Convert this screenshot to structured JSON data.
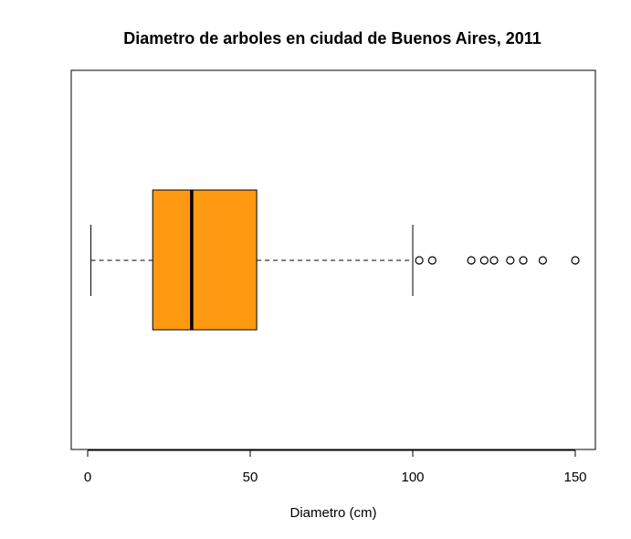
{
  "chart_data": {
    "type": "boxplot",
    "orientation": "horizontal",
    "title": "Diametro de arboles en ciudad de Buenos Aires, 2011",
    "xlabel": "Diametro (cm)",
    "ylabel": "",
    "xlim": [
      0,
      150
    ],
    "xticks": [
      0,
      50,
      100,
      150
    ],
    "xtick_labels": [
      "0",
      "50",
      "100",
      "150"
    ],
    "grid": false,
    "box_color": "#FF9912",
    "box": {
      "whisker_low": 1,
      "q1": 20,
      "median": 32,
      "q3": 52,
      "whisker_high": 100
    },
    "outliers": [
      102,
      106,
      118,
      122,
      125,
      130,
      134,
      140,
      150
    ]
  }
}
